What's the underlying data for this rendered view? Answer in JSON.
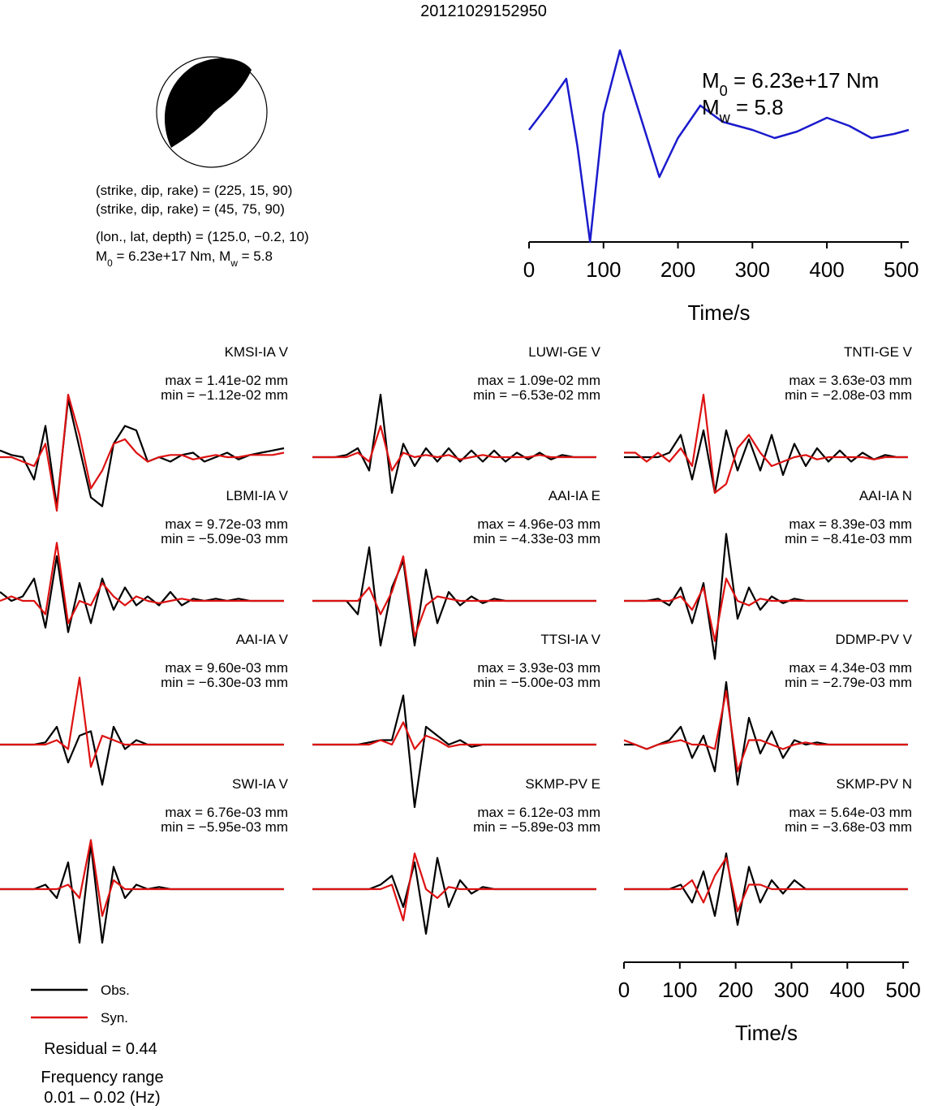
{
  "chart_data": {
    "type": "waveform-fit",
    "title": "20121029152950",
    "focal": {
      "lines": [
        "(strike, dip, rake) = (225, 15, 90)",
        "(strike, dip, rake) = (45, 75, 90)",
        "(lon., lat, depth) = (125.0, −0.2, 10)"
      ],
      "moment_line": [
        "M",
        "0",
        " = 6.23e+17 Nm, M",
        "w",
        " = 5.8"
      ]
    },
    "stf": {
      "type": "line",
      "annotation_m0": [
        "M",
        "0",
        " = 6.23e+17 Nm"
      ],
      "annotation_mw": [
        "M",
        "w",
        " = 5.8"
      ],
      "color": "#1a1acc",
      "x": [
        0,
        25,
        50,
        65,
        82,
        100,
        122,
        145,
        175,
        200,
        230,
        260,
        300,
        330,
        360,
        400,
        430,
        460,
        490,
        510
      ],
      "values": [
        0,
        0.3,
        0.63,
        -0.2,
        -1.38,
        0.2,
        0.98,
        0.3,
        -0.58,
        -0.1,
        0.3,
        0.1,
        0,
        -0.1,
        -0.02,
        0.15,
        0.05,
        -0.1,
        -0.05,
        0
      ],
      "xlim": [
        0,
        510
      ],
      "xticks": [
        0,
        100,
        200,
        300,
        400,
        500
      ],
      "xlabel": "Time/s"
    },
    "legend": [
      {
        "name": "Obs.",
        "color": "#000000"
      },
      {
        "name": "Syn.",
        "color": "#dd1111"
      }
    ],
    "x": [
      0,
      20,
      40,
      60,
      80,
      100,
      120,
      140,
      160,
      180,
      200,
      220,
      240,
      260,
      280,
      300,
      320,
      340,
      360,
      380,
      400,
      420,
      440,
      460,
      480,
      500
    ],
    "panels": [
      {
        "station": "KMSI-IA V",
        "max": "max = 1.41e-02 mm",
        "min": "min = −1.12e-02 mm",
        "obs": [
          0.15,
          0.05,
          0,
          -0.5,
          0.7,
          -1.1,
          1.3,
          0.2,
          -0.9,
          -1.1,
          0.3,
          0.7,
          0.6,
          -0.1,
          0,
          -0.1,
          0.05,
          0.1,
          -0.1,
          0,
          0.1,
          -0.05,
          0.05,
          0.1,
          0.15,
          0.2
        ],
        "syn": [
          0,
          0,
          -0.1,
          -0.2,
          0.3,
          -1.2,
          1.4,
          0.5,
          -0.7,
          -0.3,
          0.3,
          0.4,
          0.1,
          -0.1,
          0,
          0.05,
          0.05,
          -0.05,
          0,
          0.05,
          0,
          0,
          0.05,
          0.05,
          0.05,
          0.1
        ]
      },
      {
        "station": "LUWI-GE V",
        "max": "max = 1.09e-02 mm",
        "min": "min = −6.53e-02 mm",
        "obs": [
          0,
          0,
          0,
          0.05,
          0.2,
          -0.3,
          1.4,
          -0.8,
          0.3,
          -0.2,
          0.2,
          -0.1,
          0.2,
          -0.1,
          0.15,
          -0.1,
          0.15,
          -0.1,
          0.1,
          -0.05,
          0.1,
          -0.05,
          0.05,
          0,
          0,
          0
        ],
        "syn": [
          0,
          0,
          0,
          0,
          0.1,
          -0.1,
          0.7,
          -0.3,
          0.1,
          0,
          0.05,
          0,
          0.05,
          -0.05,
          0,
          0.05,
          0,
          0,
          0,
          0,
          0.05,
          0,
          0,
          0,
          0,
          0
        ]
      },
      {
        "station": "TNTI-GE V",
        "max": "max = 3.63e-03 mm",
        "min": "min = −2.08e-03 mm",
        "obs": [
          0,
          0,
          0,
          0,
          0.1,
          0.5,
          -0.5,
          0.6,
          -0.8,
          0.6,
          -0.3,
          0.4,
          -0.3,
          0.5,
          -0.4,
          0.3,
          -0.2,
          0.2,
          -0.1,
          0.15,
          -0.1,
          0.1,
          -0.05,
          0.05,
          0,
          0
        ],
        "syn": [
          0.1,
          0.1,
          -0.1,
          0.1,
          -0.1,
          0.2,
          -0.2,
          1.4,
          -0.8,
          -0.6,
          0.2,
          0.5,
          0.1,
          -0.2,
          -0.1,
          0,
          0.05,
          -0.05,
          0,
          0,
          0,
          0,
          -0.05,
          0,
          0,
          0
        ]
      },
      {
        "station": "LBMI-IA V",
        "max": "max = 9.72e-03 mm",
        "min": "min = −5.09e-03 mm",
        "obs": [
          0.2,
          0,
          0.1,
          0.5,
          -0.6,
          1.0,
          -0.7,
          0.4,
          -0.5,
          0.5,
          -0.2,
          0.3,
          -0.1,
          0.1,
          -0.1,
          0.2,
          -0.1,
          0.05,
          0,
          0.05,
          0,
          0.05,
          0,
          0,
          0,
          0
        ],
        "syn": [
          0,
          0.1,
          0,
          0,
          -0.3,
          1.3,
          -0.5,
          0,
          -0.1,
          0.4,
          0.1,
          -0.1,
          0.1,
          0,
          -0.05,
          0,
          0.05,
          0,
          0,
          0,
          0,
          0,
          0,
          0,
          0,
          0
        ]
      },
      {
        "station": "AAI-IA E",
        "max": "max = 4.96e-03 mm",
        "min": "min = −4.33e-03 mm",
        "obs": [
          0,
          0,
          0,
          0,
          -0.3,
          1.2,
          -1.0,
          0.3,
          0.9,
          -1.0,
          0.7,
          -0.5,
          0.2,
          -0.1,
          0.1,
          -0.05,
          0.05,
          0,
          0,
          0,
          0,
          0,
          0,
          0,
          0,
          0
        ],
        "syn": [
          0,
          0,
          0,
          0,
          0,
          0.3,
          -0.3,
          0.2,
          1.0,
          -0.8,
          -0.1,
          0.1,
          0.05,
          0,
          0,
          0,
          0,
          0,
          0,
          0,
          0,
          0,
          0,
          0,
          0,
          0
        ]
      },
      {
        "station": "AAI-IA N",
        "max": "max = 8.39e-03 mm",
        "min": "min = −8.41e-03 mm",
        "obs": [
          0,
          0,
          0,
          0.05,
          -0.1,
          0.3,
          -0.5,
          0.4,
          -1.3,
          1.5,
          -0.4,
          0.3,
          -0.2,
          0.1,
          -0.05,
          0.05,
          0,
          0,
          0,
          0,
          0,
          0,
          0,
          0,
          0,
          0
        ],
        "syn": [
          0,
          0,
          0,
          0,
          0,
          0.1,
          -0.2,
          0.3,
          -0.9,
          0.5,
          0,
          -0.1,
          0.05,
          0,
          0,
          0,
          0,
          0,
          0,
          0,
          0,
          0,
          0,
          0,
          0,
          0
        ]
      },
      {
        "station": "AAI-IA V",
        "max": "max = 9.60e-03 mm",
        "min": "min = −6.30e-03 mm",
        "obs": [
          0,
          0,
          0,
          0,
          0.05,
          0.4,
          -0.4,
          0.2,
          0.3,
          -0.9,
          0.4,
          -0.1,
          0.1,
          0,
          0,
          0,
          0,
          0,
          0,
          0,
          0,
          0,
          0,
          0,
          0,
          0
        ],
        "syn": [
          0,
          0,
          0,
          0,
          0,
          0.1,
          -0.1,
          1.5,
          -0.5,
          0.2,
          0.1,
          0,
          0,
          0,
          0,
          0,
          0,
          0,
          0,
          0,
          0,
          0,
          0,
          0,
          0,
          0
        ]
      },
      {
        "station": "TTSI-IA V",
        "max": "max = 3.93e-03 mm",
        "min": "min = −5.00e-03 mm",
        "obs": [
          0,
          0,
          0,
          0,
          0,
          0.05,
          0.1,
          0.1,
          1.1,
          -1.4,
          0.4,
          0.2,
          0,
          0.1,
          -0.05,
          0,
          0,
          0,
          0,
          0,
          0,
          0,
          0,
          0,
          0,
          0
        ],
        "syn": [
          0,
          0,
          0,
          0,
          0,
          0,
          0.1,
          0,
          0.5,
          -0.1,
          0.2,
          0.1,
          -0.05,
          0,
          0,
          0,
          0,
          0,
          0,
          0,
          0,
          0,
          0,
          0,
          0,
          0
        ]
      },
      {
        "station": "DDMP-PV V",
        "max": "max = 4.34e-03 mm",
        "min": "min = −2.79e-03 mm",
        "obs": [
          0,
          0,
          -0.1,
          0,
          0.1,
          0.4,
          -0.3,
          0.2,
          -0.6,
          1.4,
          -0.9,
          0.6,
          -0.2,
          0.3,
          -0.3,
          0.1,
          0,
          0.05,
          0,
          0,
          0,
          0,
          0,
          0,
          0,
          0
        ],
        "syn": [
          0.1,
          0,
          -0.1,
          0,
          0.05,
          0.1,
          0,
          0,
          -0.1,
          1.2,
          -0.6,
          0.1,
          0.1,
          0,
          -0.1,
          0,
          0.05,
          0,
          0,
          0,
          0,
          0,
          0,
          0,
          0,
          0
        ]
      },
      {
        "station": "SWI-IA V",
        "max": "max = 6.76e-03 mm",
        "min": "min = −5.95e-03 mm",
        "obs": [
          0,
          0,
          0,
          0,
          0.1,
          -0.2,
          0.6,
          -1.2,
          1.0,
          -1.2,
          0.5,
          -0.2,
          0.1,
          0,
          0.05,
          0,
          0,
          0,
          0,
          0,
          0,
          0,
          0,
          0,
          0,
          0
        ],
        "syn": [
          0,
          0,
          0,
          0,
          0,
          0,
          0.1,
          -0.2,
          1.1,
          -0.6,
          0.2,
          0,
          0,
          0,
          0,
          0,
          0,
          0,
          0,
          0,
          0,
          0,
          0,
          0,
          0,
          0
        ]
      },
      {
        "station": "SKMP-PV E",
        "max": "max = 6.12e-03 mm",
        "min": "min = −5.89e-03 mm",
        "obs": [
          0,
          0,
          0,
          0,
          0,
          0,
          0.1,
          0.3,
          -0.4,
          0.6,
          -1.0,
          0.7,
          -0.4,
          0.2,
          -0.1,
          0.05,
          0,
          0,
          0,
          0,
          0,
          0,
          0,
          0,
          0,
          0
        ],
        "syn": [
          0,
          0,
          0,
          0,
          0,
          0,
          0,
          0.1,
          -0.7,
          0.8,
          0,
          -0.2,
          0.05,
          0,
          0,
          0,
          0,
          0,
          0,
          0,
          0,
          0,
          0,
          0,
          0,
          0
        ]
      },
      {
        "station": "SKMP-PV N",
        "max": "max = 5.64e-03 mm",
        "min": "min = −3.68e-03 mm",
        "obs": [
          0,
          0,
          0,
          0,
          0,
          0.1,
          -0.3,
          0.4,
          -0.6,
          0.8,
          -0.8,
          0.5,
          -0.3,
          0.2,
          -0.1,
          0.2,
          0,
          0,
          0,
          0,
          0,
          0,
          0,
          0,
          0,
          0
        ],
        "syn": [
          0,
          0,
          0,
          0,
          0,
          0,
          0.2,
          -0.3,
          0.3,
          0.7,
          -0.5,
          0.1,
          0.1,
          0,
          0,
          0,
          0,
          0,
          0,
          0,
          0,
          0,
          0,
          0,
          0,
          0
        ]
      }
    ],
    "xlim": [
      0,
      510
    ],
    "xticks": [
      0,
      100,
      200,
      300,
      400,
      500
    ],
    "xlabel": "Time/s",
    "residual": "Residual = 0.44",
    "frequency_label": "Frequency range",
    "frequency_value": "0.01 – 0.02 (Hz)"
  }
}
